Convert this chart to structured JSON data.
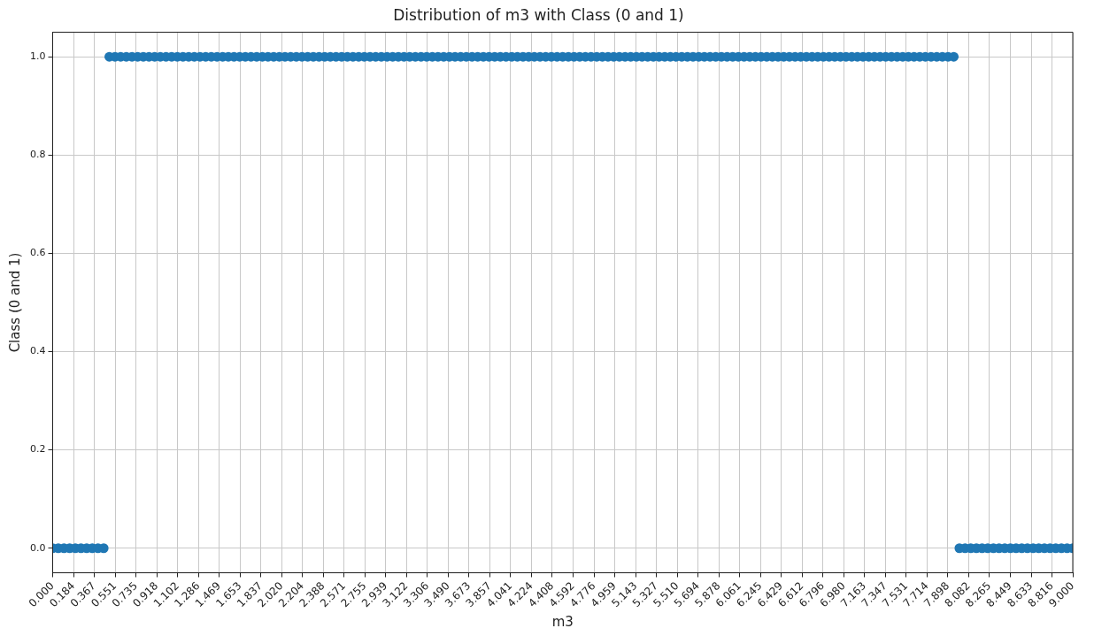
{
  "chart_data": {
    "type": "scatter",
    "title": "Distribution of m3 with Class (0 and 1)",
    "xlabel": "m3",
    "ylabel": "Class (0 and 1)",
    "x": [
      0,
      0.05,
      0.1,
      0.15,
      0.2,
      0.25,
      0.3,
      0.35,
      0.4,
      0.45,
      0.5,
      0.55,
      0.6,
      0.65,
      0.7,
      0.75,
      0.8,
      0.85,
      0.9,
      0.95,
      1,
      1.05,
      1.1,
      1.15,
      1.2,
      1.25,
      1.3,
      1.35,
      1.4,
      1.45,
      1.5,
      1.55,
      1.6,
      1.65,
      1.7,
      1.75,
      1.8,
      1.85,
      1.9,
      1.95,
      2,
      2.05,
      2.1,
      2.15,
      2.2,
      2.25,
      2.3,
      2.35,
      2.4,
      2.45,
      2.5,
      2.55,
      2.6,
      2.65,
      2.7,
      2.75,
      2.8,
      2.85,
      2.9,
      2.95,
      3,
      3.05,
      3.1,
      3.15,
      3.2,
      3.25,
      3.3,
      3.35,
      3.4,
      3.45,
      3.5,
      3.55,
      3.6,
      3.65,
      3.7,
      3.75,
      3.8,
      3.85,
      3.9,
      3.95,
      4,
      4.05,
      4.1,
      4.15,
      4.2,
      4.25,
      4.3,
      4.35,
      4.4,
      4.45,
      4.5,
      4.55,
      4.6,
      4.65,
      4.7,
      4.75,
      4.8,
      4.85,
      4.9,
      4.95,
      5,
      5.05,
      5.1,
      5.15,
      5.2,
      5.25,
      5.3,
      5.35,
      5.4,
      5.45,
      5.5,
      5.55,
      5.6,
      5.65,
      5.7,
      5.75,
      5.8,
      5.85,
      5.9,
      5.95,
      6,
      6.05,
      6.1,
      6.15,
      6.2,
      6.25,
      6.3,
      6.35,
      6.4,
      6.45,
      6.5,
      6.55,
      6.6,
      6.65,
      6.7,
      6.75,
      6.8,
      6.85,
      6.9,
      6.95,
      7,
      7.05,
      7.1,
      7.15,
      7.2,
      7.25,
      7.3,
      7.35,
      7.4,
      7.45,
      7.5,
      7.55,
      7.6,
      7.65,
      7.7,
      7.75,
      7.8,
      7.85,
      7.9,
      7.95,
      8,
      8.05,
      8.1,
      8.15,
      8.2,
      8.25,
      8.3,
      8.35,
      8.4,
      8.45,
      8.5,
      8.55,
      8.6,
      8.65,
      8.7,
      8.75,
      8.8,
      8.85,
      8.9,
      8.95,
      9
    ],
    "series": [
      {
        "color": "#1f77b4",
        "values": [
          0,
          0,
          0,
          0,
          0,
          0,
          0,
          0,
          0,
          0,
          1,
          1,
          1,
          1,
          1,
          1,
          1,
          1,
          1,
          1,
          1,
          1,
          1,
          1,
          1,
          1,
          1,
          1,
          1,
          1,
          1,
          1,
          1,
          1,
          1,
          1,
          1,
          1,
          1,
          1,
          1,
          1,
          1,
          1,
          1,
          1,
          1,
          1,
          1,
          1,
          1,
          1,
          1,
          1,
          1,
          1,
          1,
          1,
          1,
          1,
          1,
          1,
          1,
          1,
          1,
          1,
          1,
          1,
          1,
          1,
          1,
          1,
          1,
          1,
          1,
          1,
          1,
          1,
          1,
          1,
          1,
          1,
          1,
          1,
          1,
          1,
          1,
          1,
          1,
          1,
          1,
          1,
          1,
          1,
          1,
          1,
          1,
          1,
          1,
          1,
          1,
          1,
          1,
          1,
          1,
          1,
          1,
          1,
          1,
          1,
          1,
          1,
          1,
          1,
          1,
          1,
          1,
          1,
          1,
          1,
          1,
          1,
          1,
          1,
          1,
          1,
          1,
          1,
          1,
          1,
          1,
          1,
          1,
          1,
          1,
          1,
          1,
          1,
          1,
          1,
          1,
          1,
          1,
          1,
          1,
          1,
          1,
          1,
          1,
          1,
          1,
          1,
          1,
          1,
          1,
          1,
          1,
          1,
          1,
          1,
          0,
          0,
          0,
          0,
          0,
          0,
          0,
          0,
          0,
          0,
          0,
          0,
          0,
          0,
          0,
          0,
          0,
          0,
          0,
          0,
          0
        ]
      }
    ],
    "xlim": [
      0,
      9
    ],
    "xticks": [
      {
        "value": 0,
        "label": "0.000"
      },
      {
        "value": 0.184,
        "label": "0.184"
      },
      {
        "value": 0.367,
        "label": "0.367"
      },
      {
        "value": 0.551,
        "label": "0.551"
      },
      {
        "value": 0.735,
        "label": "0.735"
      },
      {
        "value": 0.918,
        "label": "0.918"
      },
      {
        "value": 1.102,
        "label": "1.102"
      },
      {
        "value": 1.286,
        "label": "1.286"
      },
      {
        "value": 1.469,
        "label": "1.469"
      },
      {
        "value": 1.653,
        "label": "1.653"
      },
      {
        "value": 1.837,
        "label": "1.837"
      },
      {
        "value": 2.02,
        "label": "2.020"
      },
      {
        "value": 2.204,
        "label": "2.204"
      },
      {
        "value": 2.388,
        "label": "2.388"
      },
      {
        "value": 2.571,
        "label": "2.571"
      },
      {
        "value": 2.755,
        "label": "2.755"
      },
      {
        "value": 2.939,
        "label": "2.939"
      },
      {
        "value": 3.122,
        "label": "3.122"
      },
      {
        "value": 3.306,
        "label": "3.306"
      },
      {
        "value": 3.49,
        "label": "3.490"
      },
      {
        "value": 3.673,
        "label": "3.673"
      },
      {
        "value": 3.857,
        "label": "3.857"
      },
      {
        "value": 4.041,
        "label": "4.041"
      },
      {
        "value": 4.224,
        "label": "4.224"
      },
      {
        "value": 4.408,
        "label": "4.408"
      },
      {
        "value": 4.592,
        "label": "4.592"
      },
      {
        "value": 4.776,
        "label": "4.776"
      },
      {
        "value": 4.959,
        "label": "4.959"
      },
      {
        "value": 5.143,
        "label": "5.143"
      },
      {
        "value": 5.327,
        "label": "5.327"
      },
      {
        "value": 5.51,
        "label": "5.510"
      },
      {
        "value": 5.694,
        "label": "5.694"
      },
      {
        "value": 5.878,
        "label": "5.878"
      },
      {
        "value": 6.061,
        "label": "6.061"
      },
      {
        "value": 6.245,
        "label": "6.245"
      },
      {
        "value": 6.429,
        "label": "6.429"
      },
      {
        "value": 6.612,
        "label": "6.612"
      },
      {
        "value": 6.796,
        "label": "6.796"
      },
      {
        "value": 6.98,
        "label": "6.980"
      },
      {
        "value": 7.163,
        "label": "7.163"
      },
      {
        "value": 7.347,
        "label": "7.347"
      },
      {
        "value": 7.531,
        "label": "7.531"
      },
      {
        "value": 7.714,
        "label": "7.714"
      },
      {
        "value": 7.898,
        "label": "7.898"
      },
      {
        "value": 8.082,
        "label": "8.082"
      },
      {
        "value": 8.265,
        "label": "8.265"
      },
      {
        "value": 8.449,
        "label": "8.449"
      },
      {
        "value": 8.633,
        "label": "8.633"
      },
      {
        "value": 8.816,
        "label": "8.816"
      },
      {
        "value": 9,
        "label": "9.000"
      }
    ],
    "ylim": [
      -0.05,
      1.05
    ],
    "yticks": [
      {
        "value": 0,
        "label": "0.0"
      },
      {
        "value": 0.2,
        "label": "0.2"
      },
      {
        "value": 0.4,
        "label": "0.4"
      },
      {
        "value": 0.6,
        "label": "0.6"
      },
      {
        "value": 0.8,
        "label": "0.8"
      },
      {
        "value": 1,
        "label": "1.0"
      }
    ],
    "grid": true,
    "marker": "circle"
  }
}
